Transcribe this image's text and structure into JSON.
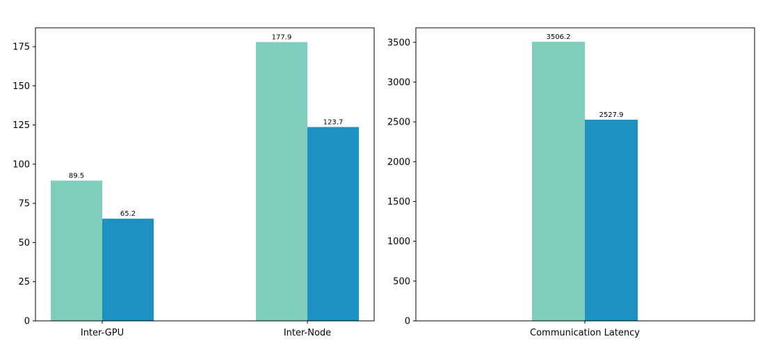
{
  "chart_data": [
    {
      "type": "bar",
      "categories": [
        "Inter-GPU",
        "Inter-Node"
      ],
      "series": [
        {
          "values": [
            89.5,
            177.9
          ],
          "color": "#7fcdbb"
        },
        {
          "values": [
            65.2,
            123.7
          ],
          "color": "#1d91c0"
        }
      ],
      "data_labels": [
        [
          "89.5",
          "177.9"
        ],
        [
          "65.2",
          "123.7"
        ]
      ],
      "ylim": [
        0,
        187
      ],
      "yticks": [
        0,
        25,
        50,
        75,
        100,
        125,
        150,
        175
      ],
      "ytick_labels": [
        "0",
        "25",
        "50",
        "75",
        "100",
        "125",
        "150",
        "175"
      ],
      "grid": false,
      "title": "",
      "xlabel": "",
      "ylabel": ""
    },
    {
      "type": "bar",
      "categories": [
        "Communication Latency"
      ],
      "series": [
        {
          "values": [
            3506.2
          ],
          "color": "#7fcdbb"
        },
        {
          "values": [
            2527.9
          ],
          "color": "#1d91c0"
        }
      ],
      "data_labels": [
        [
          "3506.2"
        ],
        [
          "2527.9"
        ]
      ],
      "ylim": [
        0,
        3681.5
      ],
      "yticks": [
        0,
        500,
        1000,
        1500,
        2000,
        2500,
        3000,
        3500
      ],
      "ytick_labels": [
        "0",
        "500",
        "1000",
        "1500",
        "2000",
        "2500",
        "3000",
        "3500"
      ],
      "grid": false,
      "title": "",
      "xlabel": "",
      "ylabel": ""
    }
  ]
}
